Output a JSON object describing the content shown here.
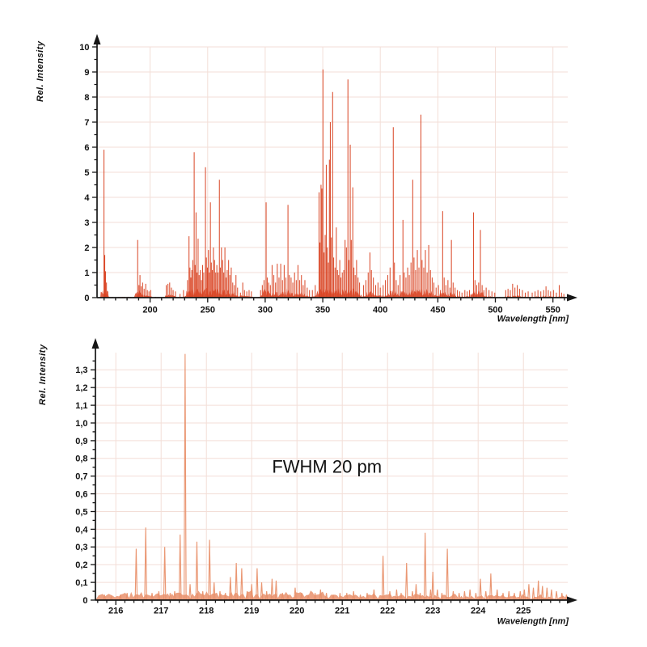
{
  "colors": {
    "background": "#ffffff",
    "grid": "#f3ded7",
    "axis": "#161616",
    "text": "#111111",
    "spectrum_full": "#d94323",
    "spectrum_zoom": "#e9916c"
  },
  "chart_data": [
    {
      "id": "full_spectrum",
      "type": "line",
      "subtype": "emission-line-spectrum",
      "title": "",
      "xlabel": "Wavelength [nm]",
      "ylabel": "Rel.  Intensity",
      "xlim": [
        153.9,
        570
      ],
      "ylim": [
        0,
        10.45
      ],
      "grid": true,
      "legend": null,
      "line_color": "#d94323",
      "x_major_ticks": [
        200,
        250,
        300,
        350,
        400,
        450,
        500,
        550
      ],
      "x_tick_labels": [
        "200",
        "250",
        "300",
        "350",
        "400",
        "450",
        "500",
        "550"
      ],
      "x_minor": {
        "from": 160,
        "to": 560,
        "step": 10
      },
      "y_major_ticks": [
        0,
        1,
        2,
        3,
        4,
        5,
        6,
        7,
        8,
        9,
        10
      ],
      "y_tick_labels": [
        "0",
        "1",
        "2",
        "3",
        "4",
        "5",
        "6",
        "7",
        "8",
        "9",
        "10"
      ],
      "y_minor": {
        "from": 0.5,
        "to": 10,
        "step": 0.5
      },
      "noise": {
        "start": 156,
        "end": 561,
        "step": 0.4,
        "base": 0.035,
        "thresh": 0.5,
        "boost_min": 0.06,
        "boost": 0.3
      },
      "annotation": null,
      "peaks": [
        [
          159.9,
          5.9
        ],
        [
          160.6,
          1.7
        ],
        [
          161.3,
          1.05
        ],
        [
          162.1,
          0.6
        ],
        [
          163.2,
          0.25
        ],
        [
          189.2,
          2.3
        ],
        [
          190.3,
          0.5
        ],
        [
          191.2,
          0.9
        ],
        [
          192.3,
          0.45
        ],
        [
          193.5,
          0.6
        ],
        [
          194.8,
          0.35
        ],
        [
          196.2,
          0.55
        ],
        [
          197.6,
          0.3
        ],
        [
          199,
          0.25
        ],
        [
          200.5,
          0.3
        ],
        [
          214,
          0.5
        ],
        [
          215.5,
          0.55
        ],
        [
          217,
          0.6
        ],
        [
          218.5,
          0.4
        ],
        [
          220,
          0.3
        ],
        [
          222,
          0.25
        ],
        [
          226,
          0.15
        ],
        [
          229,
          0.3
        ],
        [
          232.5,
          0.7
        ],
        [
          233.8,
          2.45
        ],
        [
          234.6,
          1.2
        ],
        [
          235.4,
          0.8
        ],
        [
          236.2,
          1.1
        ],
        [
          237.1,
          1.5
        ],
        [
          238.3,
          5.8
        ],
        [
          239.1,
          1.3
        ],
        [
          239.9,
          3.4
        ],
        [
          240.8,
          1.0
        ],
        [
          241.7,
          2.35
        ],
        [
          242.6,
          0.9
        ],
        [
          243.6,
          1.1
        ],
        [
          244.6,
          0.7
        ],
        [
          245.6,
          1.3
        ],
        [
          246.6,
          1.0
        ],
        [
          248.1,
          5.2
        ],
        [
          248.9,
          1.6
        ],
        [
          249.8,
          1.2
        ],
        [
          250.7,
          1.9
        ],
        [
          251.5,
          1.0
        ],
        [
          252.4,
          3.8
        ],
        [
          253.2,
          1.4
        ],
        [
          254.1,
          1.1
        ],
        [
          255.0,
          2.0
        ],
        [
          256.0,
          1.5
        ],
        [
          257.0,
          1.0
        ],
        [
          258.0,
          1.3
        ],
        [
          259.0,
          1.0
        ],
        [
          260.2,
          4.7
        ],
        [
          261.0,
          1.2
        ],
        [
          262.0,
          2.0
        ],
        [
          263.0,
          1.5
        ],
        [
          264.0,
          1.0
        ],
        [
          265.0,
          2.0
        ],
        [
          266.0,
          0.8
        ],
        [
          267.0,
          1.1
        ],
        [
          268.2,
          1.5
        ],
        [
          269.3,
          0.9
        ],
        [
          270.5,
          1.2
        ],
        [
          271.8,
          0.6
        ],
        [
          273.2,
          0.5
        ],
        [
          274.6,
          0.9
        ],
        [
          276.0,
          0.4
        ],
        [
          278.5,
          0.2
        ],
        [
          280.5,
          0.6
        ],
        [
          282,
          0.3
        ],
        [
          284,
          0.25
        ],
        [
          286,
          0.3
        ],
        [
          288,
          0.25
        ],
        [
          296,
          0.3
        ],
        [
          297.5,
          0.5
        ],
        [
          299,
          0.7
        ],
        [
          300.8,
          3.8
        ],
        [
          301.8,
          0.8
        ],
        [
          303,
          0.6
        ],
        [
          304.5,
          0.5
        ],
        [
          306,
          1.3
        ],
        [
          307.5,
          0.9
        ],
        [
          309,
          0.6
        ],
        [
          310.5,
          1.35
        ],
        [
          312,
          0.8
        ],
        [
          313.5,
          1.35
        ],
        [
          315,
          0.7
        ],
        [
          316.5,
          1.3
        ],
        [
          318,
          0.8
        ],
        [
          319.8,
          3.7
        ],
        [
          321,
          0.9
        ],
        [
          322.5,
          0.8
        ],
        [
          324,
          0.6
        ],
        [
          325.5,
          1.0
        ],
        [
          327,
          0.7
        ],
        [
          328.5,
          1.3
        ],
        [
          330,
          0.7
        ],
        [
          331.5,
          0.9
        ],
        [
          333,
          0.5
        ],
        [
          334.5,
          0.7
        ],
        [
          336.5,
          0.4
        ],
        [
          338.5,
          0.3
        ],
        [
          341,
          0.3
        ],
        [
          343.5,
          0.5
        ],
        [
          346.8,
          4.2
        ],
        [
          347.6,
          2.2
        ],
        [
          348.5,
          4.5
        ],
        [
          349.3,
          4.35
        ],
        [
          350.2,
          9.1
        ],
        [
          351.1,
          1.8
        ],
        [
          352.1,
          2.5
        ],
        [
          353.1,
          5.3
        ],
        [
          354.0,
          2.0
        ],
        [
          354.9,
          1.4
        ],
        [
          355.8,
          5.5
        ],
        [
          356.6,
          7.0
        ],
        [
          357.5,
          2.4
        ],
        [
          358.6,
          8.2
        ],
        [
          359.5,
          1.6
        ],
        [
          360.7,
          1.2
        ],
        [
          361.8,
          2.8
        ],
        [
          362.8,
          1.1
        ],
        [
          363.8,
          0.9
        ],
        [
          364.8,
          1.5
        ],
        [
          365.8,
          0.8
        ],
        [
          367,
          1.0
        ],
        [
          368.3,
          1.1
        ],
        [
          369.4,
          2.3
        ],
        [
          370.6,
          2.0
        ],
        [
          371.9,
          8.7
        ],
        [
          372.8,
          1.5
        ],
        [
          373.9,
          6.1
        ],
        [
          374.8,
          2.3
        ],
        [
          376.1,
          4.4
        ],
        [
          377.1,
          1.2
        ],
        [
          378.2,
          0.9
        ],
        [
          379.4,
          1.5
        ],
        [
          380.7,
          0.8
        ],
        [
          382,
          0.6
        ],
        [
          385.5,
          0.5
        ],
        [
          387.5,
          0.7
        ],
        [
          389.5,
          1.0
        ],
        [
          391,
          1.8
        ],
        [
          392.3,
          1.1
        ],
        [
          394,
          0.8
        ],
        [
          396,
          0.5
        ],
        [
          398,
          0.6
        ],
        [
          400,
          0.4
        ],
        [
          402.5,
          0.5
        ],
        [
          404.5,
          0.7
        ],
        [
          406.5,
          0.9
        ],
        [
          408.5,
          1.2
        ],
        [
          411.3,
          6.8
        ],
        [
          412.3,
          1.4
        ],
        [
          413.8,
          0.7
        ],
        [
          415.5,
          0.5
        ],
        [
          417.2,
          0.9
        ],
        [
          419.7,
          3.1
        ],
        [
          420.8,
          1.0
        ],
        [
          422.3,
          0.8
        ],
        [
          423.8,
          1.2
        ],
        [
          425.2,
          0.9
        ],
        [
          426.7,
          1.4
        ],
        [
          428.2,
          4.7
        ],
        [
          429.3,
          1.6
        ],
        [
          430.7,
          1.1
        ],
        [
          432.2,
          1.9
        ],
        [
          433.6,
          1.2
        ],
        [
          435.3,
          7.3
        ],
        [
          436.3,
          1.5
        ],
        [
          437.8,
          1.2
        ],
        [
          439.2,
          1.9
        ],
        [
          440.7,
          1.0
        ],
        [
          442.1,
          2.1
        ],
        [
          443.6,
          1.1
        ],
        [
          445.1,
          0.8
        ],
        [
          446.6,
          0.6
        ],
        [
          448.5,
          0.4
        ],
        [
          450.5,
          0.5
        ],
        [
          452.3,
          0.3
        ],
        [
          454.2,
          3.45
        ],
        [
          455.5,
          0.8
        ],
        [
          457,
          0.5
        ],
        [
          458.8,
          0.7
        ],
        [
          460.5,
          0.4
        ],
        [
          461.8,
          2.3
        ],
        [
          463.3,
          0.6
        ],
        [
          465,
          0.4
        ],
        [
          467,
          0.3
        ],
        [
          469,
          0.25
        ],
        [
          471,
          0.2
        ],
        [
          473.5,
          0.3
        ],
        [
          475.5,
          0.25
        ],
        [
          477.5,
          0.3
        ],
        [
          481,
          3.4
        ],
        [
          482.3,
          0.7
        ],
        [
          483.8,
          0.5
        ],
        [
          485.5,
          0.6
        ],
        [
          487,
          2.7
        ],
        [
          488.5,
          0.5
        ],
        [
          490,
          0.3
        ],
        [
          492,
          0.4
        ],
        [
          494.5,
          0.3
        ],
        [
          497,
          0.25
        ],
        [
          499.5,
          0.2
        ],
        [
          509,
          0.3
        ],
        [
          511,
          0.35
        ],
        [
          513,
          0.3
        ],
        [
          515,
          0.55
        ],
        [
          517,
          0.4
        ],
        [
          519,
          0.5
        ],
        [
          521,
          0.35
        ],
        [
          523.5,
          0.3
        ],
        [
          526,
          0.2
        ],
        [
          528.5,
          0.25
        ],
        [
          532,
          0.2
        ],
        [
          534.5,
          0.25
        ],
        [
          537,
          0.3
        ],
        [
          539.5,
          0.25
        ],
        [
          542,
          0.3
        ],
        [
          544,
          0.45
        ],
        [
          546,
          0.3
        ],
        [
          548,
          0.25
        ],
        [
          550.5,
          0.3
        ],
        [
          553,
          0.2
        ],
        [
          555.5,
          0.5
        ],
        [
          557.5,
          0.2
        ],
        [
          559.5,
          0.15
        ]
      ]
    },
    {
      "id": "zoom_spectrum",
      "type": "line",
      "subtype": "emission-line-spectrum",
      "title": "",
      "xlabel": "Wavelength [nm]",
      "ylabel": "Rel.  Intensity",
      "xlim": [
        215.55,
        226.12
      ],
      "ylim": [
        0,
        1.45
      ],
      "grid": true,
      "legend": null,
      "line_color": "#e9916c",
      "x_major_ticks": [
        216,
        217,
        218,
        219,
        220,
        221,
        222,
        223,
        224,
        225
      ],
      "x_tick_labels": [
        "216",
        "217",
        "218",
        "219",
        "220",
        "221",
        "222",
        "223",
        "224",
        "225"
      ],
      "x_minor": {
        "from": 215.6,
        "to": 226.0,
        "step": 0.2
      },
      "y_major_ticks": [
        0,
        0.1,
        0.2,
        0.3,
        0.4,
        0.5,
        0.6,
        0.7,
        0.8,
        0.9,
        1.0,
        1.1,
        1.2,
        1.3
      ],
      "y_tick_labels": [
        "0",
        "0,1",
        "0,2",
        "0,3",
        "0,4",
        "0,5",
        "0,6",
        "0,7",
        "0,8",
        "0,9",
        "1,0",
        "1,1",
        "1,2",
        "1,3"
      ],
      "y_minor": {
        "from": 0.05,
        "to": 1.35,
        "step": 0.05
      },
      "noise": {
        "start": 215.62,
        "end": 225.98,
        "step": 0.045,
        "base": 0.02,
        "thresh": 0.4,
        "boost_min": 0.008,
        "boost": 0.03
      },
      "annotation": {
        "text": "FWHM 20 pm",
        "x_nm": 220.66,
        "y": 0.72
      },
      "peaks": [
        [
          215.75,
          0.03
        ],
        [
          215.9,
          0.02
        ],
        [
          216.1,
          0.03
        ],
        [
          216.25,
          0.04
        ],
        [
          216.45,
          0.29
        ],
        [
          216.66,
          0.41
        ],
        [
          216.8,
          0.04
        ],
        [
          216.95,
          0.05
        ],
        [
          217.08,
          0.3
        ],
        [
          217.2,
          0.04
        ],
        [
          217.3,
          0.05
        ],
        [
          217.42,
          0.37
        ],
        [
          217.53,
          1.39
        ],
        [
          217.64,
          0.09
        ],
        [
          217.79,
          0.33
        ],
        [
          217.92,
          0.05
        ],
        [
          218.07,
          0.34
        ],
        [
          218.17,
          0.1
        ],
        [
          218.3,
          0.05
        ],
        [
          218.42,
          0.04
        ],
        [
          218.53,
          0.13
        ],
        [
          218.66,
          0.21
        ],
        [
          218.78,
          0.18
        ],
        [
          218.9,
          0.05
        ],
        [
          219.0,
          0.09
        ],
        [
          219.12,
          0.18
        ],
        [
          219.22,
          0.1
        ],
        [
          219.33,
          0.05
        ],
        [
          219.45,
          0.12
        ],
        [
          219.54,
          0.11
        ],
        [
          219.68,
          0.04
        ],
        [
          219.8,
          0.03
        ],
        [
          219.96,
          0.07
        ],
        [
          220.1,
          0.04
        ],
        [
          220.25,
          0.03
        ],
        [
          220.4,
          0.04
        ],
        [
          220.52,
          0.06
        ],
        [
          220.65,
          0.04
        ],
        [
          220.8,
          0.03
        ],
        [
          220.95,
          0.04
        ],
        [
          221.1,
          0.04
        ],
        [
          221.25,
          0.05
        ],
        [
          221.4,
          0.03
        ],
        [
          221.55,
          0.04
        ],
        [
          221.7,
          0.06
        ],
        [
          221.9,
          0.25
        ],
        [
          222.05,
          0.05
        ],
        [
          222.2,
          0.06
        ],
        [
          222.3,
          0.04
        ],
        [
          222.42,
          0.21
        ],
        [
          222.55,
          0.05
        ],
        [
          222.63,
          0.09
        ],
        [
          222.72,
          0.04
        ],
        [
          222.83,
          0.38
        ],
        [
          222.95,
          0.06
        ],
        [
          223.0,
          0.16
        ],
        [
          223.1,
          0.06
        ],
        [
          223.2,
          0.04
        ],
        [
          223.32,
          0.29
        ],
        [
          223.45,
          0.05
        ],
        [
          223.58,
          0.04
        ],
        [
          223.7,
          0.05
        ],
        [
          223.82,
          0.06
        ],
        [
          223.95,
          0.04
        ],
        [
          224.05,
          0.12
        ],
        [
          224.17,
          0.05
        ],
        [
          224.28,
          0.15
        ],
        [
          224.42,
          0.06
        ],
        [
          224.55,
          0.04
        ],
        [
          224.68,
          0.05
        ],
        [
          224.8,
          0.04
        ],
        [
          224.93,
          0.05
        ],
        [
          225.02,
          0.06
        ],
        [
          225.12,
          0.09
        ],
        [
          225.22,
          0.07
        ],
        [
          225.33,
          0.11
        ],
        [
          225.42,
          0.08
        ],
        [
          225.52,
          0.07
        ],
        [
          225.62,
          0.06
        ],
        [
          225.73,
          0.05
        ],
        [
          225.85,
          0.04
        ],
        [
          225.95,
          0.03
        ]
      ]
    }
  ]
}
